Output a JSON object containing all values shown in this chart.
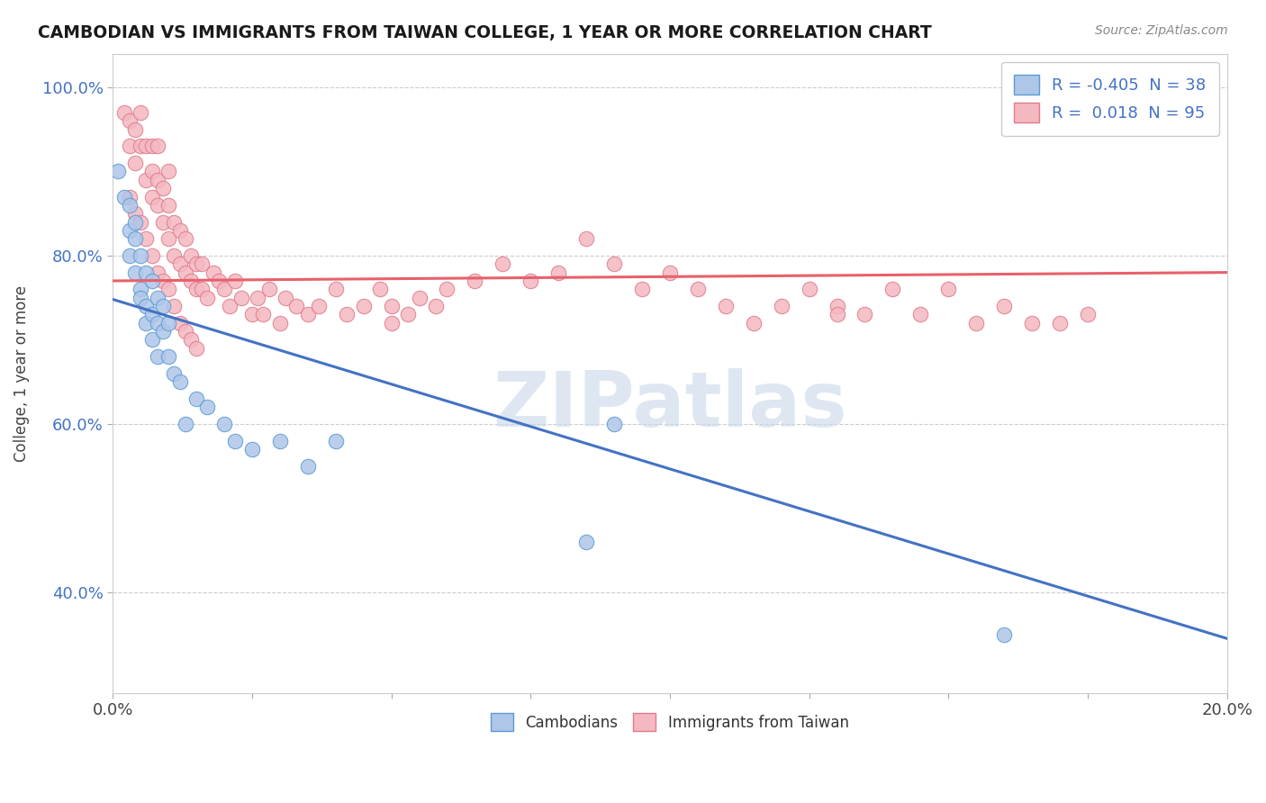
{
  "title": "CAMBODIAN VS IMMIGRANTS FROM TAIWAN COLLEGE, 1 YEAR OR MORE CORRELATION CHART",
  "source_text": "Source: ZipAtlas.com",
  "ylabel": "College, 1 year or more",
  "xlim": [
    0.0,
    0.2
  ],
  "ylim": [
    0.28,
    1.04
  ],
  "xticks": [
    0.0,
    0.025,
    0.05,
    0.075,
    0.1,
    0.125,
    0.15,
    0.175,
    0.2
  ],
  "yticks": [
    0.4,
    0.6,
    0.8,
    1.0
  ],
  "yticklabels": [
    "40.0%",
    "60.0%",
    "80.0%",
    "100.0%"
  ],
  "grid_color": "#cccccc",
  "background_color": "#ffffff",
  "cambodian_color": "#aec6e8",
  "cambodian_edge": "#5b9bd5",
  "taiwan_color": "#f4b8c1",
  "taiwan_edge": "#e07b8a",
  "cambodian_R": -0.405,
  "cambodian_N": 38,
  "taiwan_R": 0.018,
  "taiwan_N": 95,
  "watermark": "ZIPatlas",
  "watermark_color": "#c8d8e8",
  "cambodian_line_color": "#4472c4",
  "taiwan_line_color": "#e8606a",
  "cam_line_x0": 0.0,
  "cam_line_y0": 0.748,
  "cam_line_x1": 0.2,
  "cam_line_y1": 0.345,
  "tai_line_x0": 0.0,
  "tai_line_y0": 0.77,
  "tai_line_x1": 0.2,
  "tai_line_y1": 0.78,
  "cambodian_scatter_x": [
    0.001,
    0.002,
    0.003,
    0.003,
    0.003,
    0.004,
    0.004,
    0.004,
    0.005,
    0.005,
    0.005,
    0.006,
    0.006,
    0.006,
    0.007,
    0.007,
    0.007,
    0.008,
    0.008,
    0.008,
    0.009,
    0.009,
    0.01,
    0.01,
    0.011,
    0.012,
    0.013,
    0.015,
    0.017,
    0.02,
    0.022,
    0.025,
    0.03,
    0.035,
    0.04,
    0.085,
    0.09,
    0.16
  ],
  "cambodian_scatter_y": [
    0.9,
    0.87,
    0.83,
    0.86,
    0.8,
    0.84,
    0.78,
    0.82,
    0.76,
    0.8,
    0.75,
    0.74,
    0.78,
    0.72,
    0.73,
    0.77,
    0.7,
    0.72,
    0.75,
    0.68,
    0.71,
    0.74,
    0.68,
    0.72,
    0.66,
    0.65,
    0.6,
    0.63,
    0.62,
    0.6,
    0.58,
    0.57,
    0.58,
    0.55,
    0.58,
    0.46,
    0.6,
    0.35
  ],
  "taiwan_scatter_x": [
    0.002,
    0.003,
    0.003,
    0.004,
    0.004,
    0.005,
    0.005,
    0.006,
    0.006,
    0.007,
    0.007,
    0.007,
    0.008,
    0.008,
    0.008,
    0.009,
    0.009,
    0.01,
    0.01,
    0.01,
    0.011,
    0.011,
    0.012,
    0.012,
    0.013,
    0.013,
    0.014,
    0.014,
    0.015,
    0.015,
    0.016,
    0.016,
    0.017,
    0.018,
    0.019,
    0.02,
    0.021,
    0.022,
    0.023,
    0.025,
    0.026,
    0.027,
    0.028,
    0.03,
    0.031,
    0.033,
    0.035,
    0.037,
    0.04,
    0.042,
    0.045,
    0.048,
    0.05,
    0.053,
    0.055,
    0.058,
    0.06,
    0.065,
    0.07,
    0.075,
    0.08,
    0.085,
    0.09,
    0.095,
    0.1,
    0.105,
    0.11,
    0.115,
    0.12,
    0.125,
    0.13,
    0.135,
    0.14,
    0.145,
    0.15,
    0.155,
    0.16,
    0.165,
    0.17,
    0.175,
    0.003,
    0.004,
    0.005,
    0.006,
    0.007,
    0.008,
    0.009,
    0.01,
    0.011,
    0.012,
    0.013,
    0.014,
    0.015,
    0.05,
    0.13
  ],
  "taiwan_scatter_y": [
    0.97,
    0.96,
    0.93,
    0.95,
    0.91,
    0.93,
    0.97,
    0.89,
    0.93,
    0.87,
    0.9,
    0.93,
    0.86,
    0.89,
    0.93,
    0.84,
    0.88,
    0.82,
    0.86,
    0.9,
    0.8,
    0.84,
    0.79,
    0.83,
    0.78,
    0.82,
    0.77,
    0.8,
    0.76,
    0.79,
    0.76,
    0.79,
    0.75,
    0.78,
    0.77,
    0.76,
    0.74,
    0.77,
    0.75,
    0.73,
    0.75,
    0.73,
    0.76,
    0.72,
    0.75,
    0.74,
    0.73,
    0.74,
    0.76,
    0.73,
    0.74,
    0.76,
    0.74,
    0.73,
    0.75,
    0.74,
    0.76,
    0.77,
    0.79,
    0.77,
    0.78,
    0.82,
    0.79,
    0.76,
    0.78,
    0.76,
    0.74,
    0.72,
    0.74,
    0.76,
    0.74,
    0.73,
    0.76,
    0.73,
    0.76,
    0.72,
    0.74,
    0.72,
    0.72,
    0.73,
    0.87,
    0.85,
    0.84,
    0.82,
    0.8,
    0.78,
    0.77,
    0.76,
    0.74,
    0.72,
    0.71,
    0.7,
    0.69,
    0.72,
    0.73
  ]
}
